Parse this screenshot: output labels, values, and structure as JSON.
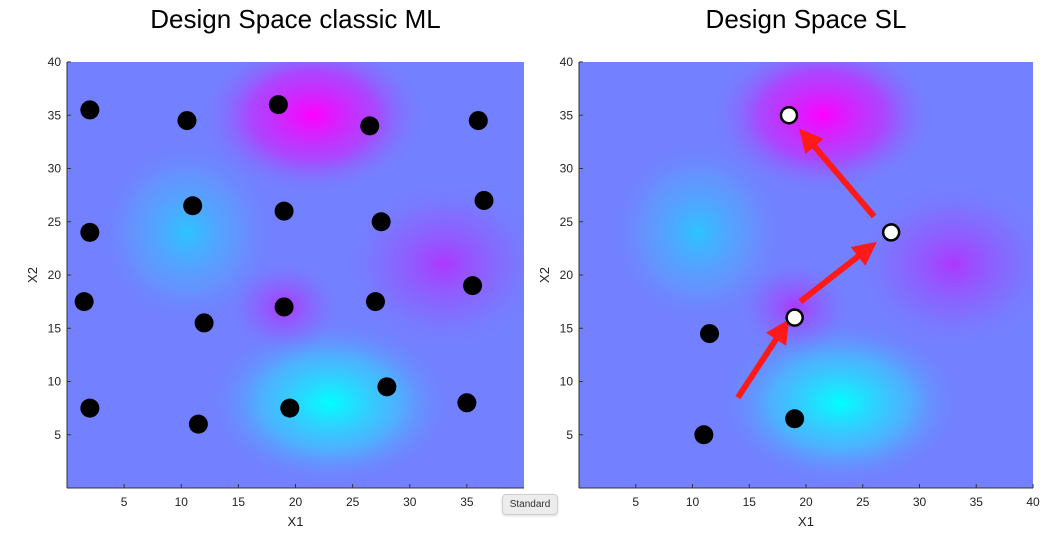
{
  "badge": {
    "label": "Standard"
  },
  "colors": {
    "background_base": "#7380ff",
    "cyan": "#00ffff",
    "magenta": "#ff00ff",
    "marker": "#000000",
    "arrow": "#ff1a1a"
  },
  "chart_data": [
    {
      "type": "scatter",
      "title": "Design Space classic ML",
      "xlabel": "X1",
      "ylabel": "X2",
      "xlim": [
        0,
        40
      ],
      "ylim": [
        0,
        40
      ],
      "xticks": [
        5,
        10,
        15,
        20,
        25,
        30,
        35
      ],
      "yticks": [
        5,
        10,
        15,
        20,
        25,
        30,
        35,
        40
      ],
      "background": "heatmap",
      "series": [
        {
          "marker": "filled-black-circle",
          "x": [
            2,
            10.5,
            18.5,
            26.5,
            36,
            2,
            11,
            19,
            27.5,
            36.5,
            1.5,
            12,
            19,
            27,
            35.5,
            2,
            11.5,
            19.5,
            28,
            35
          ],
          "y": [
            35.5,
            34.5,
            36,
            34,
            34.5,
            24,
            26.5,
            26,
            25,
            27,
            17.5,
            15.5,
            17,
            17.5,
            19,
            7.5,
            6,
            7.5,
            9.5,
            8
          ]
        }
      ]
    },
    {
      "type": "scatter",
      "title": "Design Space SL",
      "xlabel": "X1",
      "ylabel": "X2",
      "xlim": [
        0,
        40
      ],
      "ylim": [
        0,
        40
      ],
      "xticks": [
        5,
        10,
        15,
        20,
        25,
        30,
        35,
        40
      ],
      "yticks": [
        5,
        10,
        15,
        20,
        25,
        30,
        35,
        40
      ],
      "background": "heatmap",
      "series": [
        {
          "marker": "filled-black-circle",
          "x": [
            11.5,
            11,
            19
          ],
          "y": [
            14.5,
            5,
            6.5
          ]
        },
        {
          "marker": "white-circle",
          "x": [
            18.5,
            19,
            27.5
          ],
          "y": [
            35,
            16,
            24
          ]
        }
      ],
      "arrows": [
        {
          "from": [
            14,
            8.5
          ],
          "to": [
            18,
            15
          ]
        },
        {
          "from": [
            19.5,
            17.5
          ],
          "to": [
            25.5,
            22.5
          ]
        },
        {
          "from": [
            26,
            25.5
          ],
          "to": [
            20,
            33
          ]
        }
      ]
    }
  ]
}
